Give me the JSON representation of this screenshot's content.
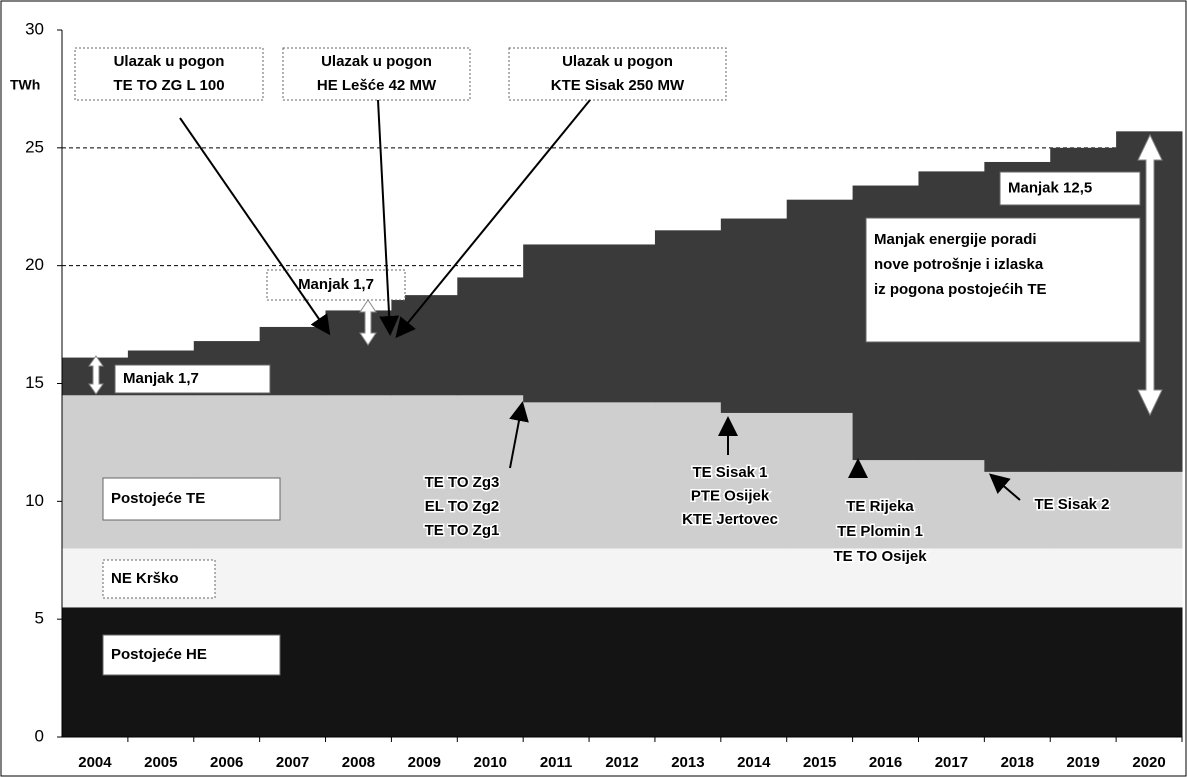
{
  "chart_data": {
    "type": "stacked_step_area",
    "y_label": "TWh",
    "categories": [
      "2004",
      "2005",
      "2006",
      "2007",
      "2008",
      "2009",
      "2010",
      "2011",
      "2012",
      "2013",
      "2014",
      "2015",
      "2016",
      "2017",
      "2018",
      "2019",
      "2020"
    ],
    "series": [
      {
        "name": "Postojeće HE",
        "color": "#141414",
        "values": [
          5.5,
          5.5,
          5.5,
          5.5,
          5.5,
          5.5,
          5.5,
          5.5,
          5.5,
          5.5,
          5.5,
          5.5,
          5.5,
          5.5,
          5.5,
          5.5,
          5.5
        ]
      },
      {
        "name": "NE Krško",
        "color": "#f4f4f4",
        "values": [
          2.5,
          2.5,
          2.5,
          2.5,
          2.5,
          2.5,
          2.5,
          2.5,
          2.5,
          2.5,
          2.5,
          2.5,
          2.5,
          2.5,
          2.5,
          2.5,
          2.5
        ]
      },
      {
        "name": "Postojeće TE",
        "color": "#cfcfcf",
        "values": [
          6.5,
          6.5,
          6.5,
          6.5,
          6.5,
          6.5,
          6.5,
          6.2,
          6.2,
          6.2,
          5.75,
          5.75,
          3.75,
          3.75,
          3.25,
          3.25,
          3.25
        ]
      },
      {
        "color": "#3a3a3a",
        "values": [
          1.6,
          1.9,
          2.3,
          2.9,
          3.6,
          4.25,
          5.0,
          6.7,
          6.7,
          7.3,
          8.25,
          9.05,
          11.65,
          12.25,
          13.15,
          13.75,
          14.45
        ]
      }
    ],
    "ylim": [
      0,
      30
    ],
    "yticks": [
      0,
      5,
      10,
      15,
      20,
      25,
      30
    ],
    "grid_ticks": [
      20,
      25
    ],
    "annotations": [
      {
        "lines": [
          "Ulazak u pogon",
          "TE TO ZG L 100"
        ]
      },
      {
        "lines": [
          "Ulazak u pogon",
          "HE Lešće 42 MW"
        ]
      },
      {
        "lines": [
          "Ulazak u pogon",
          "KTE Sisak 250 MW"
        ]
      },
      {
        "lines": [
          "Manjak 1,7"
        ]
      },
      {
        "lines": [
          "Manjak 1,7"
        ]
      },
      {
        "lines": [
          "Manjak 12,5"
        ]
      },
      {
        "lines": [
          "Manjak energije poradi",
          "nove potrošnje i izlaska",
          "iz pogona postojećih TE"
        ]
      },
      {
        "lines": [
          "Postojeće TE"
        ]
      },
      {
        "lines": [
          "NE Krško"
        ]
      },
      {
        "lines": [
          "Postojeće HE"
        ]
      },
      {
        "lines": [
          "TE TO Zg3",
          "EL TO Zg2",
          "TE TO Zg1"
        ]
      },
      {
        "lines": [
          "TE Sisak 1",
          "PTE Osijek",
          "KTE Jertovec"
        ]
      },
      {
        "lines": [
          "TE Rijeka",
          "TE Plomin 1",
          "TE TO Osijek"
        ]
      },
      {
        "lines": [
          "TE Sisak 2"
        ]
      }
    ]
  }
}
